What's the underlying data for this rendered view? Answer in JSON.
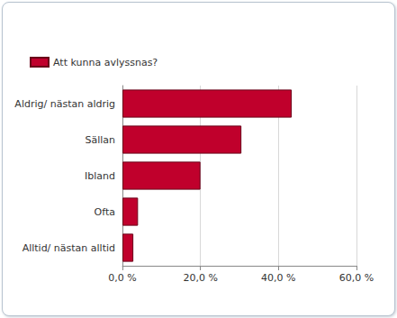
{
  "chart_data": {
    "type": "bar",
    "orientation": "horizontal",
    "categories": [
      "Aldrig/ nästan aldrig",
      "Sällan",
      "Ibland",
      "Ofta",
      "Alltid/ nästan alltid"
    ],
    "series": [
      {
        "name": "Att kunna avlyssnas?",
        "color": "#c0002c",
        "values": [
          43.4,
          30.5,
          20.0,
          4.0,
          2.8
        ]
      }
    ],
    "xlim": [
      0,
      60
    ],
    "xticks": [
      {
        "value": 0,
        "label": "0,0 %"
      },
      {
        "value": 20,
        "label": "20,0 %"
      },
      {
        "value": 40,
        "label": "40,0 %"
      },
      {
        "value": 60,
        "label": "60,0 %"
      }
    ],
    "grid": true,
    "legend": "upper left"
  }
}
